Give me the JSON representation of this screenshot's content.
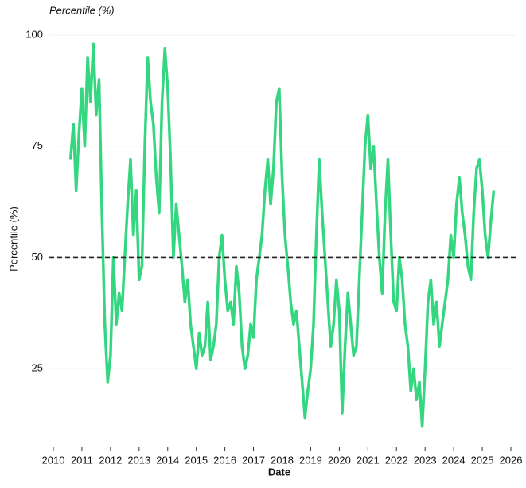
{
  "chart_data": {
    "type": "line",
    "title": "Percentile (%)",
    "x_label": "Date",
    "y_label": "Percentile (%)",
    "x": [
      2010.6,
      2010.7,
      2010.8,
      2010.9,
      2011.0,
      2011.1,
      2011.2,
      2011.3,
      2011.4,
      2011.5,
      2011.6,
      2011.7,
      2011.8,
      2011.9,
      2012.0,
      2012.1,
      2012.2,
      2012.3,
      2012.4,
      2012.5,
      2012.6,
      2012.7,
      2012.8,
      2012.9,
      2013.0,
      2013.1,
      2013.2,
      2013.3,
      2013.4,
      2013.5,
      2013.6,
      2013.7,
      2013.8,
      2013.9,
      2014.0,
      2014.1,
      2014.2,
      2014.3,
      2014.4,
      2014.5,
      2014.6,
      2014.7,
      2014.8,
      2014.9,
      2015.0,
      2015.1,
      2015.2,
      2015.3,
      2015.4,
      2015.5,
      2015.6,
      2015.7,
      2015.8,
      2015.9,
      2016.0,
      2016.1,
      2016.2,
      2016.3,
      2016.4,
      2016.5,
      2016.6,
      2016.7,
      2016.8,
      2016.9,
      2017.0,
      2017.1,
      2017.2,
      2017.3,
      2017.4,
      2017.5,
      2017.6,
      2017.7,
      2017.8,
      2017.9,
      2018.0,
      2018.1,
      2018.2,
      2018.3,
      2018.4,
      2018.5,
      2018.6,
      2018.7,
      2018.8,
      2018.9,
      2019.0,
      2019.1,
      2019.2,
      2019.3,
      2019.4,
      2019.5,
      2019.6,
      2019.7,
      2019.8,
      2019.9,
      2020.0,
      2020.1,
      2020.2,
      2020.3,
      2020.4,
      2020.5,
      2020.6,
      2020.7,
      2020.8,
      2020.9,
      2021.0,
      2021.1,
      2021.2,
      2021.3,
      2021.4,
      2021.5,
      2021.6,
      2021.7,
      2021.8,
      2021.9,
      2022.0,
      2022.1,
      2022.2,
      2022.3,
      2022.4,
      2022.5,
      2022.6,
      2022.7,
      2022.8,
      2022.9,
      2023.0,
      2023.1,
      2023.2,
      2023.3,
      2023.4,
      2023.5,
      2023.6,
      2023.7,
      2023.8,
      2023.9,
      2024.0,
      2024.1,
      2024.2,
      2024.3,
      2024.4,
      2024.5,
      2024.6,
      2024.7,
      2024.8,
      2024.9,
      2025.0,
      2025.1,
      2025.2,
      2025.3,
      2025.4
    ],
    "series": [
      {
        "color": "#34d67f",
        "values": [
          72,
          80,
          65,
          78,
          88,
          75,
          95,
          85,
          98,
          82,
          90,
          60,
          35,
          22,
          28,
          50,
          35,
          42,
          38,
          50,
          62,
          72,
          55,
          65,
          45,
          48,
          75,
          95,
          85,
          80,
          68,
          60,
          85,
          97,
          88,
          72,
          50,
          62,
          55,
          48,
          40,
          45,
          35,
          30,
          25,
          33,
          28,
          30,
          40,
          27,
          30,
          35,
          50,
          55,
          45,
          38,
          40,
          35,
          48,
          42,
          30,
          25,
          28,
          35,
          32,
          45,
          50,
          55,
          65,
          72,
          62,
          70,
          85,
          88,
          68,
          55,
          48,
          40,
          35,
          38,
          30,
          22,
          14,
          20,
          25,
          35,
          55,
          72,
          60,
          50,
          40,
          30,
          35,
          45,
          38,
          15,
          30,
          42,
          35,
          28,
          30,
          45,
          60,
          75,
          82,
          70,
          75,
          62,
          50,
          42,
          60,
          72,
          55,
          40,
          38,
          50,
          45,
          35,
          30,
          20,
          25,
          18,
          22,
          12,
          25,
          40,
          45,
          35,
          40,
          30,
          35,
          40,
          45,
          55,
          50,
          62,
          68,
          60,
          55,
          48,
          45,
          60,
          70,
          72,
          65,
          55,
          50,
          58,
          65
        ]
      }
    ],
    "reference_line": 50,
    "xlim": [
      2010,
      2026
    ],
    "xticks": [
      2010,
      2011,
      2012,
      2013,
      2014,
      2015,
      2016,
      2017,
      2018,
      2019,
      2020,
      2021,
      2022,
      2023,
      2024,
      2025,
      2026
    ],
    "ylim": [
      10,
      100
    ],
    "yticks": [
      25,
      50,
      75,
      100
    ],
    "grid": true
  }
}
